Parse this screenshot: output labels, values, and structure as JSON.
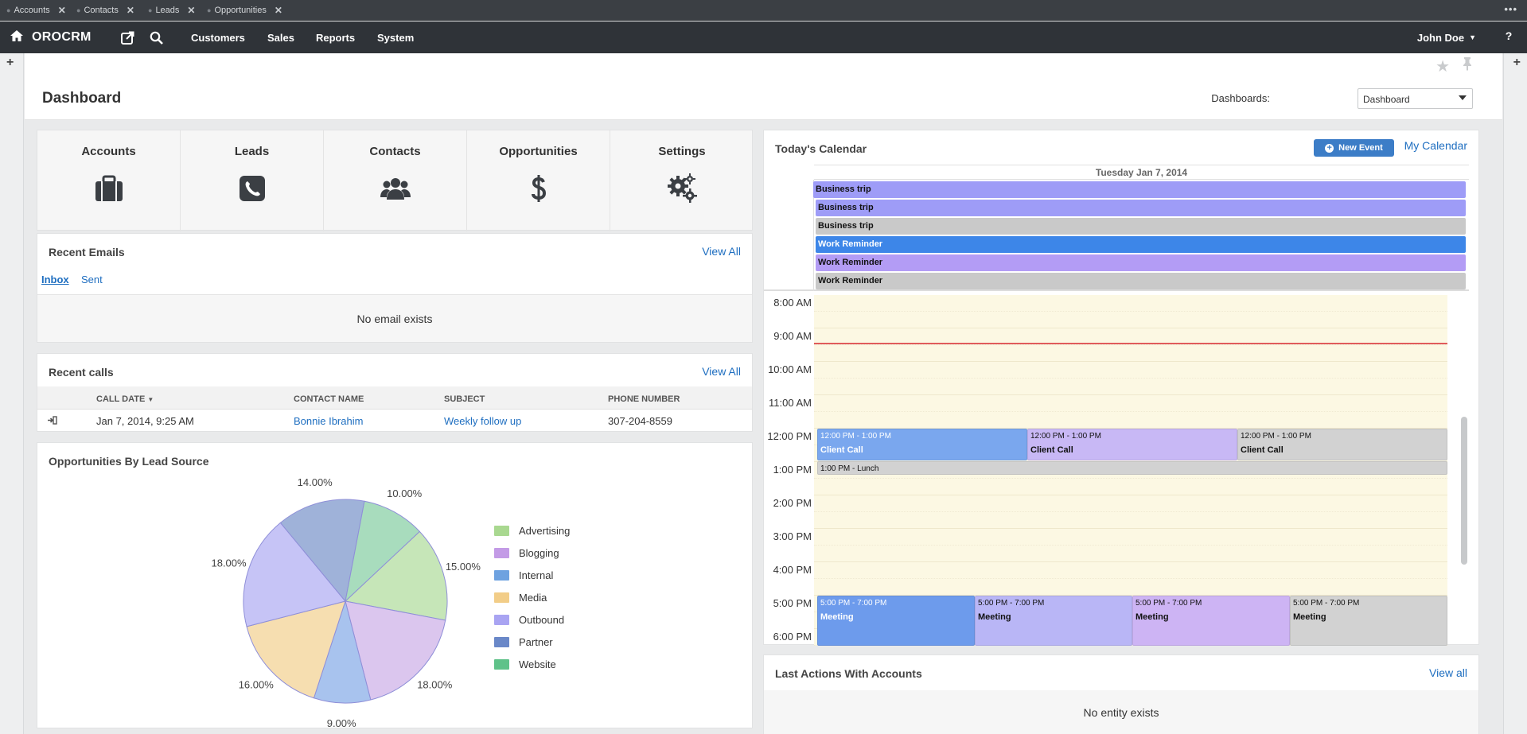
{
  "pinbar": {
    "tabs": [
      "Accounts",
      "Contacts",
      "Leads",
      "Opportunities"
    ],
    "more": "•••"
  },
  "nav": {
    "logo": "OROCRM",
    "menus": [
      "Customers",
      "Sales",
      "Reports",
      "System"
    ],
    "user": "John Doe",
    "help": "?"
  },
  "page": {
    "title": "Dashboard",
    "dashboards_label": "Dashboards:",
    "dashboards_value": "Dashboard"
  },
  "quick_launch": [
    {
      "label": "Accounts",
      "icon": "briefcase-icon"
    },
    {
      "label": "Leads",
      "icon": "phone-icon"
    },
    {
      "label": "Contacts",
      "icon": "users-icon"
    },
    {
      "label": "Opportunities",
      "icon": "dollar-icon"
    },
    {
      "label": "Settings",
      "icon": "gears-icon"
    }
  ],
  "emails": {
    "title": "Recent Emails",
    "view_all": "View All",
    "tabs": [
      "Inbox",
      "Sent"
    ],
    "empty": "No email exists"
  },
  "calls": {
    "title": "Recent calls",
    "view_all": "View All",
    "columns": [
      "CALL DATE",
      "CONTACT NAME",
      "SUBJECT",
      "PHONE NUMBER"
    ],
    "rows": [
      {
        "date": "Jan 7, 2014, 9:25 AM",
        "contact": "Bonnie Ibrahim",
        "subject": "Weekly follow up",
        "phone": "307-204-8559"
      }
    ]
  },
  "opportunities": {
    "title": "Opportunities By Lead Source"
  },
  "chart_data": {
    "type": "pie",
    "title": "Opportunities By Lead Source",
    "categories": [
      "Advertising",
      "Blogging",
      "Internal",
      "Media",
      "Outbound",
      "Partner",
      "Website"
    ],
    "slices": [
      {
        "label": "15.00%",
        "value": 15,
        "category": "Advertising",
        "color": "#c6e6b8"
      },
      {
        "label": "18.00%",
        "value": 18,
        "category": "Blogging",
        "color": "#dbc6ee"
      },
      {
        "label": "9.00%",
        "value": 9,
        "category": "Internal",
        "color": "#a8c3ee"
      },
      {
        "label": "16.00%",
        "value": 16,
        "category": "Media",
        "color": "#f6deb0"
      },
      {
        "label": "18.00%",
        "value": 18,
        "category": "Outbound",
        "color": "#c6c4f6"
      },
      {
        "label": "14.00%",
        "value": 14,
        "category": "Partner",
        "color": "#9fb2d9"
      },
      {
        "label": "10.00%",
        "value": 10,
        "category": "Website",
        "color": "#a8dcbd"
      }
    ],
    "legend_placement": "right",
    "legend_colors": {
      "Advertising": "#a9d890",
      "Blogging": "#c39be6",
      "Internal": "#6ea2e0",
      "Media": "#f2cd88",
      "Outbound": "#a9a4f2",
      "Partner": "#6a88c8",
      "Website": "#5fc289"
    }
  },
  "calendar": {
    "title": "Today's Calendar",
    "new_event": "New Event",
    "my_calendar": "My Calendar",
    "date": "Tuesday Jan 7, 2014",
    "all_day": [
      {
        "title": "Business trip",
        "color": "#9e9cf7"
      },
      {
        "title": "Business trip",
        "color": "#9e9cf7"
      },
      {
        "title": "Business trip",
        "color": "#c9c9c9"
      },
      {
        "title": "Work Reminder",
        "color": "#3d86e8"
      },
      {
        "title": "Work Reminder",
        "color": "#b39cf5"
      },
      {
        "title": "Work Reminder",
        "color": "#c9c9c9"
      }
    ],
    "hours": [
      "8:00 AM",
      "9:00 AM",
      "10:00 AM",
      "11:00 AM",
      "12:00 PM",
      "1:00 PM",
      "2:00 PM",
      "3:00 PM",
      "4:00 PM",
      "5:00 PM",
      "6:00 PM"
    ],
    "events": [
      {
        "time": "12:00 PM - 1:00 PM",
        "title": "Client Call",
        "color": "#7aa7ee"
      },
      {
        "time": "12:00 PM - 1:00 PM",
        "title": "Client Call",
        "color": "#c8b8f5"
      },
      {
        "time": "12:00 PM - 1:00 PM",
        "title": "Client Call",
        "color": "#d2d2d2"
      },
      {
        "time": "1:00 PM - Lunch",
        "title": "",
        "color": "#d2d2d2"
      },
      {
        "time": "5:00 PM - 7:00 PM",
        "title": "Meeting",
        "color": "#6d9bec"
      },
      {
        "time": "5:00 PM - 7:00 PM",
        "title": "Meeting",
        "color": "#b9b6f6"
      },
      {
        "time": "5:00 PM - 7:00 PM",
        "title": "Meeting",
        "color": "#cdb4f4"
      },
      {
        "time": "5:00 PM - 7:00 PM",
        "title": "Meeting",
        "color": "#d2d2d2"
      }
    ]
  },
  "last_actions": {
    "title": "Last Actions With Accounts",
    "view_all": "View all",
    "empty": "No entity exists"
  }
}
